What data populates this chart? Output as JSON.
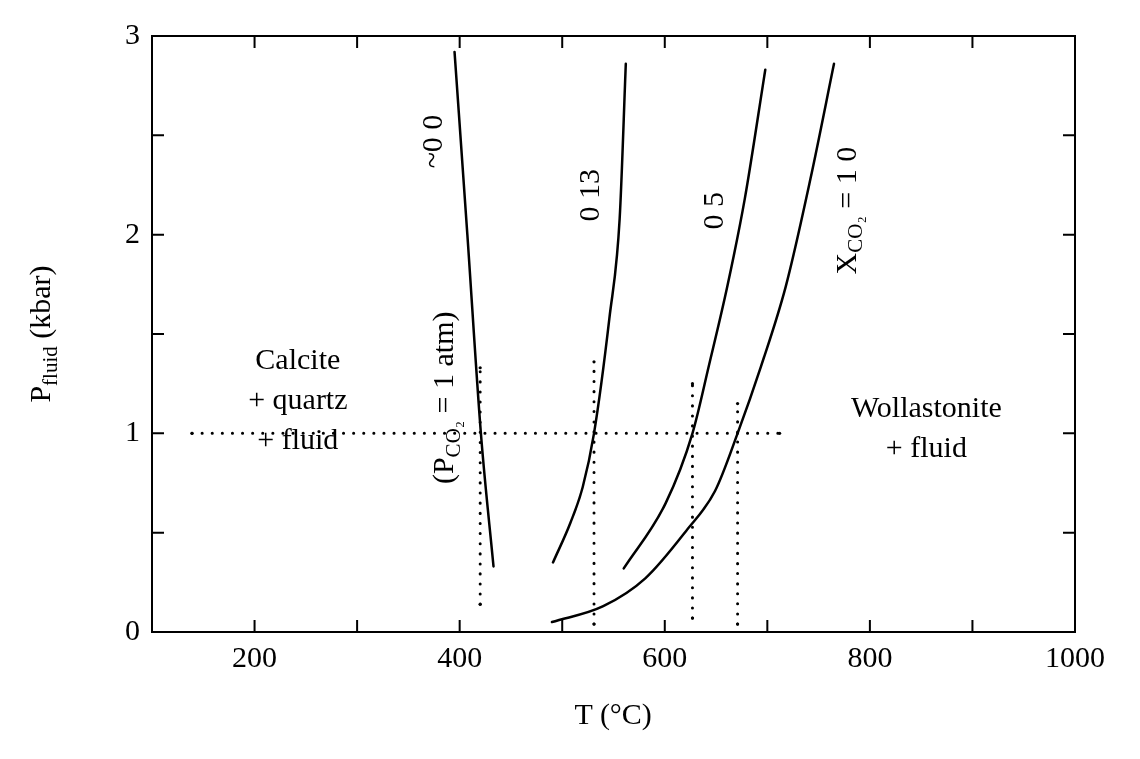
{
  "chart_data": {
    "type": "line",
    "xlabel": "T (°C)",
    "ylabel": "P$_{fluid}$ (kbar)",
    "xlim": [
      100,
      1000
    ],
    "ylim": [
      0,
      3
    ],
    "xticks": [
      200,
      {
        "value": 300,
        "label": null
      },
      400,
      {
        "value": 500,
        "label": null
      },
      600,
      {
        "value": 700,
        "label": null
      },
      800,
      {
        "value": 900,
        "label": null
      },
      1000
    ],
    "yticks": [
      0,
      {
        "value": 0.5,
        "label": null
      },
      1,
      {
        "value": 1.5,
        "label": null
      },
      2,
      {
        "value": 2.5,
        "label": null
      },
      3
    ],
    "grid": false,
    "legend": false,
    "marker": "none",
    "line_style": "solid",
    "series": [
      {
        "color": "#000000",
        "x": [
          395,
          407.5,
          420.7,
          433
        ],
        "values": [
          2.92,
          2.0,
          1.0,
          0.33
        ]
      },
      {
        "color": "#000000",
        "x": [
          491,
          508,
          520,
          531,
          546,
          556,
          562
        ],
        "values": [
          0.35,
          0.55,
          0.73,
          1.0,
          1.58,
          2.08,
          2.86
        ]
      },
      {
        "color": "#000000",
        "x": [
          560,
          601,
          627,
          643,
          661,
          678,
          698
        ],
        "values": [
          0.32,
          0.65,
          1.0,
          1.34,
          1.74,
          2.18,
          2.83
        ]
      },
      {
        "color": "#000000",
        "x": [
          490,
          540,
          581,
          621,
          649,
          671,
          694,
          718,
          742,
          765
        ],
        "values": [
          0.05,
          0.13,
          0.27,
          0.51,
          0.71,
          1.0,
          1.34,
          1.74,
          2.28,
          2.86
        ]
      },
      {
        "color": "#000000",
        "line_style": "dotted",
        "x": [
          139,
          712
        ],
        "values": [
          1,
          1
        ]
      },
      {
        "color": "#000000",
        "line_style": "dotted",
        "x": [
          420,
          420
        ],
        "values": [
          0.14,
          1.33
        ]
      },
      {
        "color": "#000000",
        "line_style": "dotted",
        "x": [
          531,
          531
        ],
        "values": [
          0.04,
          1.36
        ]
      },
      {
        "color": "#000000",
        "line_style": "dotted",
        "x": [
          627,
          627
        ],
        "values": [
          0.07,
          1.25
        ]
      },
      {
        "color": "#000000",
        "line_style": "dotted",
        "x": [
          671,
          671
        ],
        "values": [
          0.04,
          1.15
        ]
      }
    ],
    "annotations": [
      "~0 0",
      "(P$_{CO₂}$ = 1 atm)",
      "0 13",
      "0 5",
      "X$_{CO₂}$ = 1 0",
      "Calcite\n+ quartz\n+ fluid",
      "Wollastonite\n+ fluid"
    ]
  }
}
